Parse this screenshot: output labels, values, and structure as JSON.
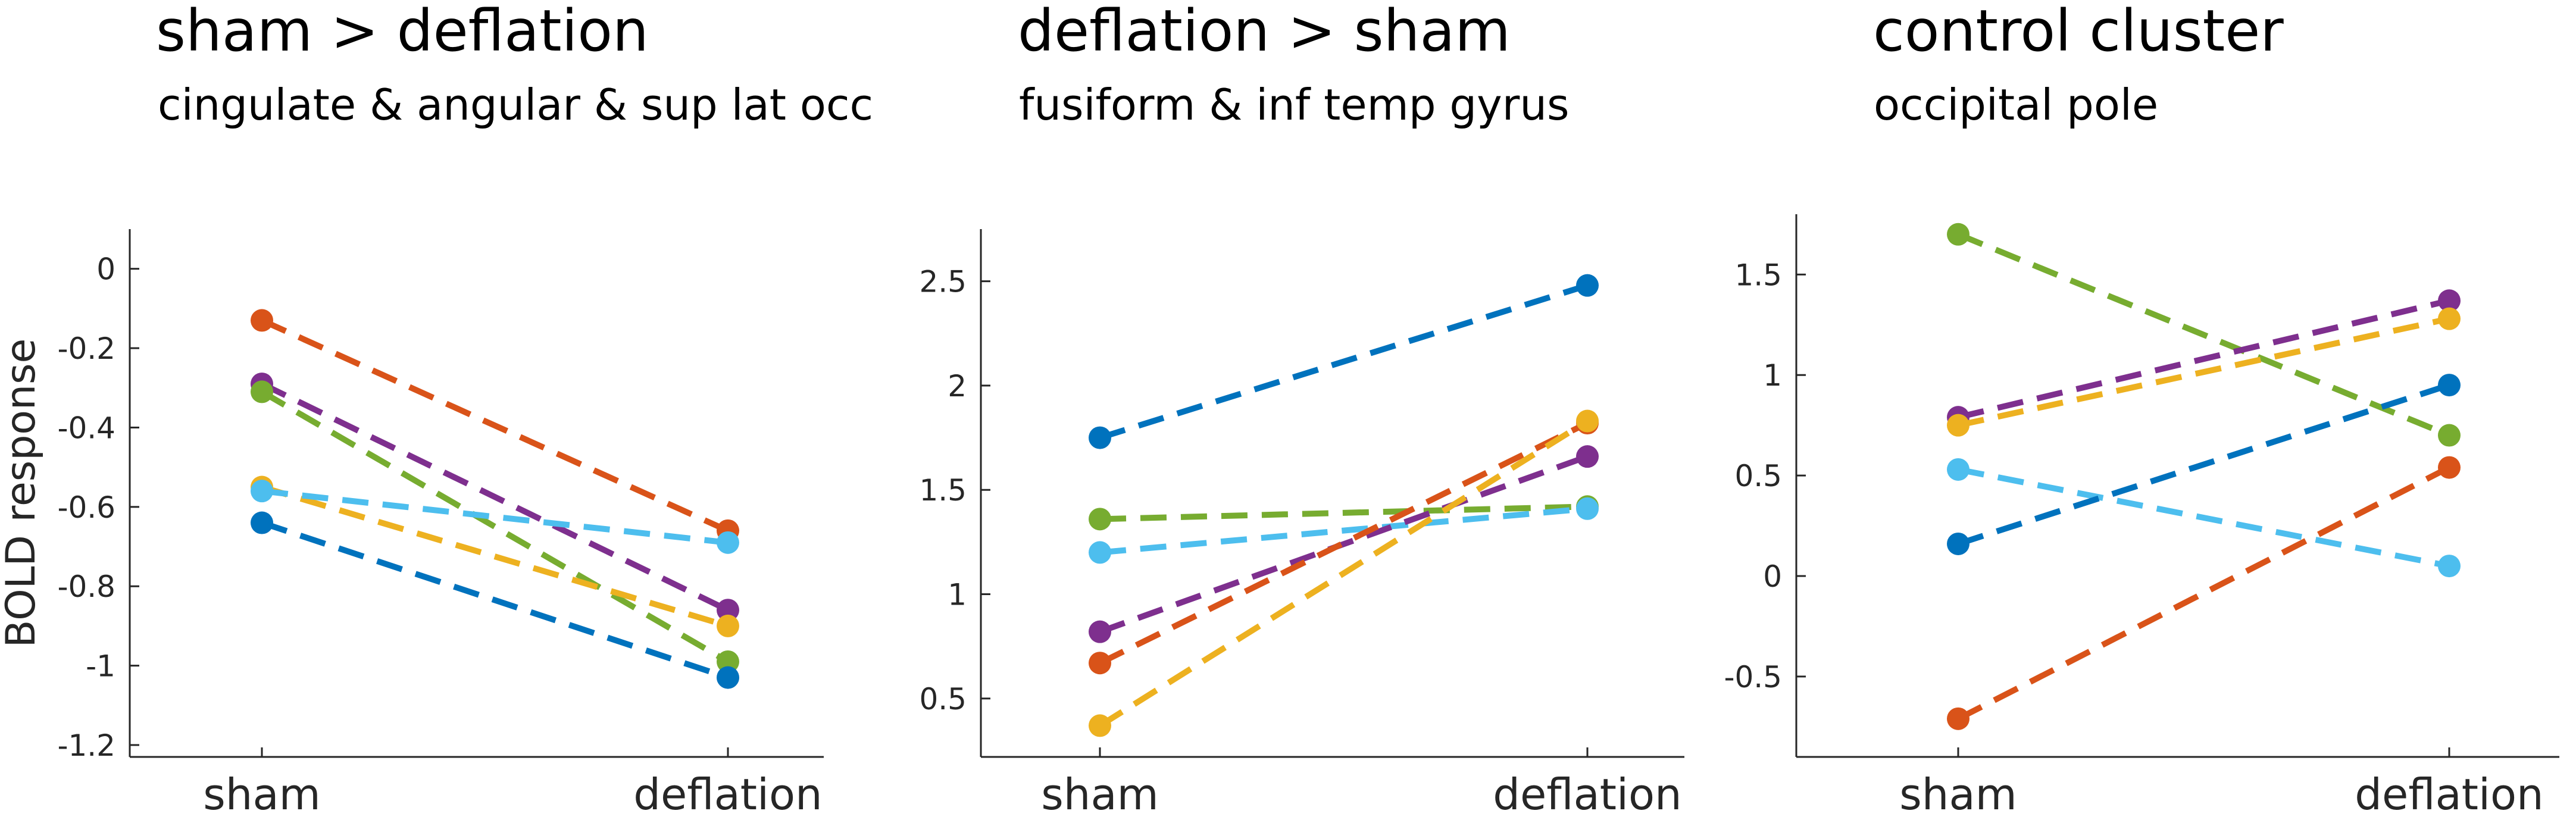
{
  "chart_data": [
    {
      "type": "line",
      "title": "sham > deflation",
      "subtitle": "cingulate & angular & sup lat occ",
      "ylabel": "BOLD response",
      "categories": [
        "sham",
        "deflation"
      ],
      "ylim": [
        -1.23,
        0.1
      ],
      "yticks": [
        0,
        -0.2,
        -0.4,
        -0.6,
        -0.8,
        -1,
        -1.2
      ],
      "ytick_labels": [
        "0",
        "-0.2",
        "-0.4",
        "-0.6",
        "-0.8",
        "-1",
        "-1.2"
      ],
      "line_style": "dashed",
      "series": [
        {
          "color": "#D95319",
          "values": [
            -0.13,
            -0.66
          ]
        },
        {
          "color": "#7E2F8E",
          "values": [
            -0.29,
            -0.86
          ]
        },
        {
          "color": "#77AC30",
          "values": [
            -0.31,
            -0.99
          ]
        },
        {
          "color": "#EDB120",
          "values": [
            -0.55,
            -0.9
          ]
        },
        {
          "color": "#4DBEEE",
          "values": [
            -0.56,
            -0.69
          ]
        },
        {
          "color": "#0072BD",
          "values": [
            -0.64,
            -1.03
          ]
        }
      ]
    },
    {
      "type": "line",
      "title": "deflation > sham",
      "subtitle": "fusiform & inf temp gyrus",
      "ylabel": "",
      "categories": [
        "sham",
        "deflation"
      ],
      "ylim": [
        0.22,
        2.75
      ],
      "yticks": [
        0.5,
        1,
        1.5,
        2,
        2.5
      ],
      "ytick_labels": [
        "0.5",
        "1",
        "1.5",
        "2",
        "2.5"
      ],
      "line_style": "dashed",
      "series": [
        {
          "color": "#0072BD",
          "values": [
            1.75,
            2.48
          ]
        },
        {
          "color": "#77AC30",
          "values": [
            1.36,
            1.42
          ]
        },
        {
          "color": "#4DBEEE",
          "values": [
            1.2,
            1.41
          ]
        },
        {
          "color": "#7E2F8E",
          "values": [
            0.82,
            1.66
          ]
        },
        {
          "color": "#D95319",
          "values": [
            0.67,
            1.82
          ]
        },
        {
          "color": "#EDB120",
          "values": [
            0.37,
            1.83
          ]
        }
      ]
    },
    {
      "type": "line",
      "title": "control cluster",
      "subtitle": "occipital pole",
      "ylabel": "",
      "categories": [
        "sham",
        "deflation"
      ],
      "ylim": [
        -0.9,
        1.8
      ],
      "yticks": [
        1.5,
        1,
        0.5,
        0,
        -0.5
      ],
      "ytick_labels": [
        "1.5",
        "1",
        "0.5",
        "0",
        "-0.5"
      ],
      "line_style": "dashed",
      "series": [
        {
          "color": "#77AC30",
          "values": [
            1.7,
            0.7
          ]
        },
        {
          "color": "#7E2F8E",
          "values": [
            0.79,
            1.37
          ]
        },
        {
          "color": "#EDB120",
          "values": [
            0.75,
            1.28
          ]
        },
        {
          "color": "#4DBEEE",
          "values": [
            0.53,
            0.05
          ]
        },
        {
          "color": "#0072BD",
          "values": [
            0.16,
            0.95
          ]
        },
        {
          "color": "#D95319",
          "values": [
            -0.71,
            0.54
          ]
        }
      ]
    }
  ]
}
